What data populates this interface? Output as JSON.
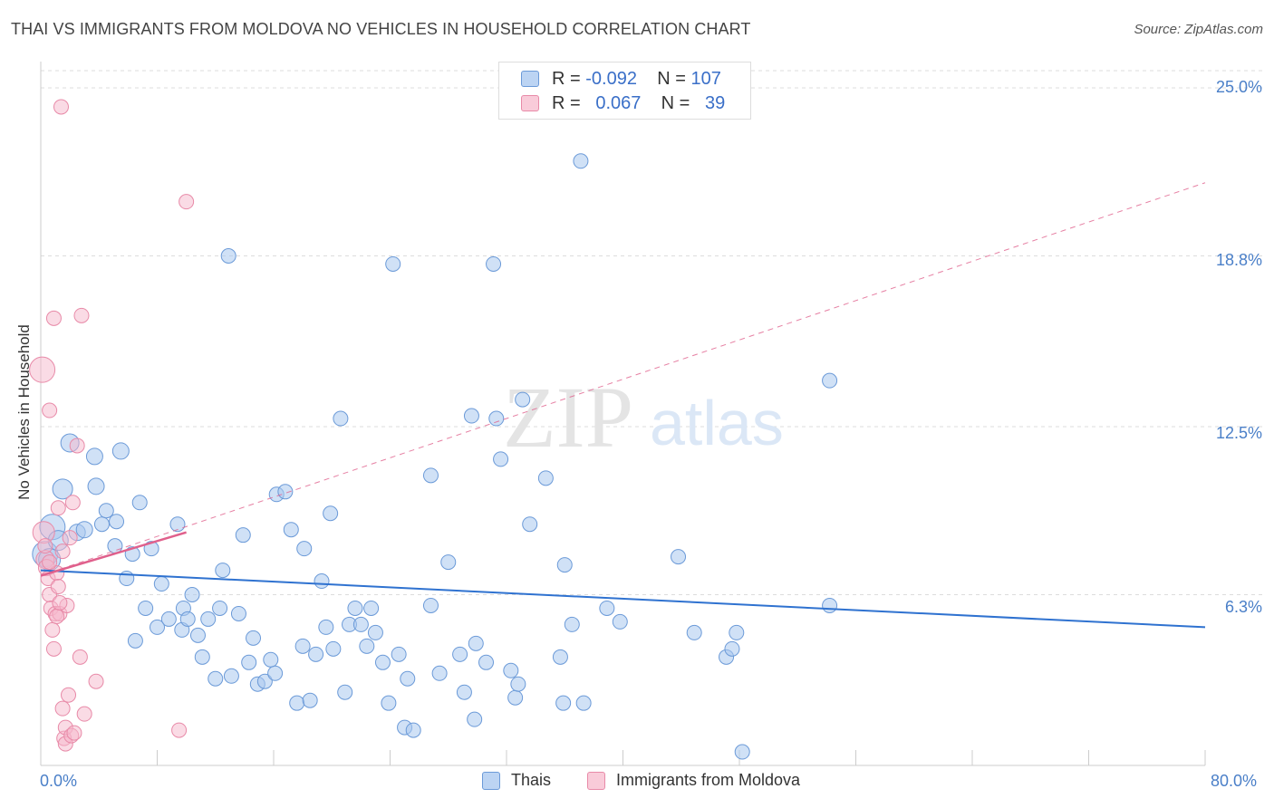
{
  "title": "THAI VS IMMIGRANTS FROM MOLDOVA NO VEHICLES IN HOUSEHOLD CORRELATION CHART",
  "source": "Source: ZipAtlas.com",
  "watermark": {
    "zip": "ZIP",
    "atlas": "atlas"
  },
  "legend_top": {
    "rows": [
      {
        "r_label": "R =",
        "r_value": "-0.092",
        "n_label": "N =",
        "n_value": "107"
      },
      {
        "r_label": "R =",
        "r_value": "0.067",
        "n_label": "N =",
        "n_value": "39"
      }
    ]
  },
  "legend_bottom": {
    "series1": "Thais",
    "series2": "Immigrants from Moldova"
  },
  "colors": {
    "blue_fill": "#a9c8ee",
    "blue_edge": "#6b9ad8",
    "blue_line": "#2f72d0",
    "pink_fill": "#f6b8cb",
    "pink_edge": "#e88aa8",
    "pink_line": "#e0608c",
    "tick_text": "#4a7fc8"
  },
  "chart_data": {
    "type": "scatter",
    "title": "THAI VS IMMIGRANTS FROM MOLDOVA NO VEHICLES IN HOUSEHOLD CORRELATION CHART",
    "xlabel": "",
    "ylabel": "No Vehicles in Household",
    "xlim": [
      0,
      80
    ],
    "ylim": [
      0,
      25
    ],
    "x_tick_labels": [
      "0.0%",
      "80.0%"
    ],
    "y_ticks": [
      6.3,
      12.5,
      18.8,
      25.0
    ],
    "y_tick_labels": [
      "6.3%",
      "12.5%",
      "18.8%",
      "25.0%"
    ],
    "grid": "horizontal dashed",
    "legend": "top-center",
    "series": [
      {
        "name": "Thais",
        "color": "#a9c8ee",
        "r": -0.092,
        "n": 107,
        "trend": {
          "x": [
            0,
            80
          ],
          "y": [
            7.2,
            5.1
          ]
        },
        "points": [
          [
            0.3,
            7.8,
            14
          ],
          [
            0.6,
            7.6,
            12
          ],
          [
            0.8,
            8.8,
            14
          ],
          [
            1.2,
            8.3,
            11
          ],
          [
            1.5,
            10.2,
            11
          ],
          [
            2.0,
            11.9,
            10
          ],
          [
            2.5,
            8.6,
            9
          ],
          [
            3.0,
            8.7,
            9
          ],
          [
            3.8,
            10.3,
            9
          ],
          [
            3.7,
            11.4,
            9
          ],
          [
            4.2,
            8.9,
            8
          ],
          [
            4.5,
            9.4,
            8
          ],
          [
            5.1,
            8.1,
            8
          ],
          [
            5.2,
            9.0,
            8
          ],
          [
            5.5,
            11.6,
            9
          ],
          [
            5.9,
            6.9,
            8
          ],
          [
            6.3,
            7.8,
            8
          ],
          [
            6.5,
            4.6,
            8
          ],
          [
            6.8,
            9.7,
            8
          ],
          [
            7.2,
            5.8,
            8
          ],
          [
            7.6,
            8.0,
            8
          ],
          [
            8.0,
            5.1,
            8
          ],
          [
            8.3,
            6.7,
            8
          ],
          [
            8.8,
            5.4,
            8
          ],
          [
            9.4,
            8.9,
            8
          ],
          [
            9.7,
            5.0,
            8
          ],
          [
            9.8,
            5.8,
            8
          ],
          [
            10.1,
            5.4,
            8
          ],
          [
            10.4,
            6.3,
            8
          ],
          [
            10.8,
            4.8,
            8
          ],
          [
            11.1,
            4.0,
            8
          ],
          [
            11.5,
            5.4,
            8
          ],
          [
            12.0,
            3.2,
            8
          ],
          [
            12.3,
            5.8,
            8
          ],
          [
            12.5,
            7.2,
            8
          ],
          [
            12.9,
            18.8,
            8
          ],
          [
            13.1,
            3.3,
            8
          ],
          [
            13.6,
            5.6,
            8
          ],
          [
            13.9,
            8.5,
            8
          ],
          [
            14.3,
            3.8,
            8
          ],
          [
            14.6,
            4.7,
            8
          ],
          [
            14.9,
            3.0,
            8
          ],
          [
            15.4,
            3.1,
            8
          ],
          [
            15.8,
            3.9,
            8
          ],
          [
            16.1,
            3.4,
            8
          ],
          [
            16.2,
            10.0,
            8
          ],
          [
            16.8,
            10.1,
            8
          ],
          [
            17.2,
            8.7,
            8
          ],
          [
            17.6,
            2.3,
            8
          ],
          [
            18.0,
            4.4,
            8
          ],
          [
            18.1,
            8.0,
            8
          ],
          [
            18.5,
            2.4,
            8
          ],
          [
            18.9,
            4.1,
            8
          ],
          [
            19.3,
            6.8,
            8
          ],
          [
            19.6,
            5.1,
            8
          ],
          [
            19.9,
            9.3,
            8
          ],
          [
            20.1,
            4.3,
            8
          ],
          [
            20.6,
            12.8,
            8
          ],
          [
            20.9,
            2.7,
            8
          ],
          [
            21.2,
            5.2,
            8
          ],
          [
            21.6,
            5.8,
            8
          ],
          [
            22.0,
            5.2,
            8
          ],
          [
            22.4,
            4.4,
            8
          ],
          [
            22.7,
            5.8,
            8
          ],
          [
            23.0,
            4.9,
            8
          ],
          [
            23.5,
            3.8,
            8
          ],
          [
            23.9,
            2.3,
            8
          ],
          [
            24.2,
            18.5,
            8
          ],
          [
            24.6,
            4.1,
            8
          ],
          [
            25.0,
            1.4,
            8
          ],
          [
            25.2,
            3.2,
            8
          ],
          [
            25.6,
            1.3,
            8
          ],
          [
            26.8,
            10.7,
            8
          ],
          [
            26.8,
            5.9,
            8
          ],
          [
            27.4,
            3.4,
            8
          ],
          [
            28.0,
            7.5,
            8
          ],
          [
            28.8,
            4.1,
            8
          ],
          [
            29.1,
            2.7,
            8
          ],
          [
            29.6,
            12.9,
            8
          ],
          [
            29.8,
            1.7,
            8
          ],
          [
            29.9,
            4.5,
            8
          ],
          [
            30.6,
            3.8,
            8
          ],
          [
            31.1,
            18.5,
            8
          ],
          [
            31.3,
            12.8,
            8
          ],
          [
            31.6,
            11.3,
            8
          ],
          [
            32.3,
            3.5,
            8
          ],
          [
            32.6,
            2.5,
            8
          ],
          [
            32.8,
            3.0,
            8
          ],
          [
            33.1,
            13.5,
            8
          ],
          [
            33.6,
            8.9,
            8
          ],
          [
            34.7,
            10.6,
            8
          ],
          [
            35.7,
            4.0,
            8
          ],
          [
            35.9,
            2.3,
            8
          ],
          [
            36.0,
            7.4,
            8
          ],
          [
            36.5,
            5.2,
            8
          ],
          [
            37.1,
            22.3,
            8
          ],
          [
            37.3,
            2.3,
            8
          ],
          [
            38.9,
            5.8,
            8
          ],
          [
            39.8,
            5.3,
            8
          ],
          [
            43.8,
            7.7,
            8
          ],
          [
            44.9,
            4.9,
            8
          ],
          [
            47.1,
            4.0,
            8
          ],
          [
            47.5,
            4.3,
            8
          ],
          [
            47.8,
            4.9,
            8
          ],
          [
            48.2,
            0.5,
            8
          ],
          [
            54.2,
            14.2,
            8
          ],
          [
            54.2,
            5.9,
            8
          ]
        ]
      },
      {
        "name": "Immigrants from Moldova",
        "color": "#f6b8cb",
        "r": 0.067,
        "n": 39,
        "trend_solid": {
          "x": [
            0,
            10
          ],
          "y": [
            7.0,
            8.6
          ]
        },
        "trend_dashed": {
          "x": [
            0,
            80
          ],
          "y": [
            7.0,
            21.5
          ]
        },
        "points": [
          [
            0.1,
            14.6,
            14
          ],
          [
            0.2,
            8.6,
            12
          ],
          [
            0.3,
            7.6,
            10
          ],
          [
            0.4,
            7.3,
            9
          ],
          [
            0.5,
            6.9,
            8
          ],
          [
            0.6,
            6.3,
            8
          ],
          [
            0.6,
            13.1,
            8
          ],
          [
            0.7,
            5.8,
            8
          ],
          [
            0.8,
            5.0,
            8
          ],
          [
            0.9,
            4.3,
            8
          ],
          [
            0.9,
            16.5,
            8
          ],
          [
            1.0,
            5.6,
            8
          ],
          [
            1.1,
            7.1,
            8
          ],
          [
            1.2,
            6.6,
            8
          ],
          [
            1.2,
            9.5,
            8
          ],
          [
            1.3,
            5.6,
            8
          ],
          [
            1.4,
            24.3,
            8
          ],
          [
            1.5,
            7.9,
            8
          ],
          [
            1.5,
            2.1,
            8
          ],
          [
            1.6,
            1.0,
            8
          ],
          [
            1.7,
            1.4,
            8
          ],
          [
            1.7,
            0.8,
            8
          ],
          [
            1.8,
            5.9,
            8
          ],
          [
            1.9,
            2.6,
            8
          ],
          [
            2.0,
            8.4,
            8
          ],
          [
            2.1,
            1.1,
            8
          ],
          [
            2.2,
            9.7,
            8
          ],
          [
            2.3,
            1.2,
            8
          ],
          [
            2.5,
            11.8,
            8
          ],
          [
            2.7,
            4.0,
            8
          ],
          [
            2.8,
            16.6,
            8
          ],
          [
            3.0,
            1.9,
            8
          ],
          [
            3.8,
            3.1,
            8
          ],
          [
            9.5,
            1.3,
            8
          ],
          [
            10.0,
            20.8,
            8
          ],
          [
            0.6,
            7.5,
            8
          ],
          [
            1.1,
            5.5,
            8
          ],
          [
            1.3,
            6.0,
            8
          ],
          [
            0.3,
            8.1,
            8
          ]
        ]
      }
    ]
  }
}
